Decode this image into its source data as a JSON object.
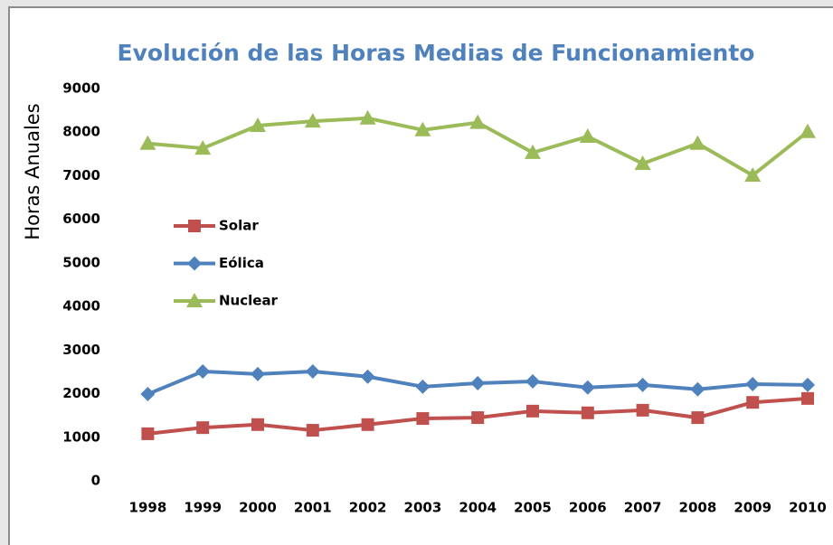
{
  "chart_data": {
    "type": "line",
    "title": "Evolución de las Horas Medias de Funcionamiento",
    "y_label": "Horas Anuales",
    "categories": [
      "1998",
      "1999",
      "2000",
      "2001",
      "2002",
      "2003",
      "2004",
      "2005",
      "2006",
      "2007",
      "2008",
      "2009",
      "2010"
    ],
    "series": [
      {
        "name": "Solar",
        "color": "#c0504d",
        "marker": "square",
        "values": [
          1080,
          1220,
          1290,
          1160,
          1290,
          1430,
          1450,
          1600,
          1560,
          1620,
          1450,
          1800,
          1890
        ]
      },
      {
        "name": "Eólica",
        "color": "#4f81bd",
        "marker": "diamond",
        "values": [
          1990,
          2510,
          2450,
          2510,
          2390,
          2160,
          2240,
          2280,
          2140,
          2200,
          2100,
          2220,
          2200
        ]
      },
      {
        "name": "Nuclear",
        "color": "#9bbb59",
        "marker": "triangle",
        "values": [
          7740,
          7630,
          8150,
          8250,
          8320,
          8050,
          8220,
          7530,
          7900,
          7280,
          7740,
          7010,
          8010
        ]
      }
    ],
    "ylim": [
      0,
      9000
    ],
    "yticks": [
      0,
      1000,
      2000,
      3000,
      4000,
      5000,
      6000,
      7000,
      8000,
      9000
    ],
    "grid": false,
    "legend": "upper-left"
  }
}
